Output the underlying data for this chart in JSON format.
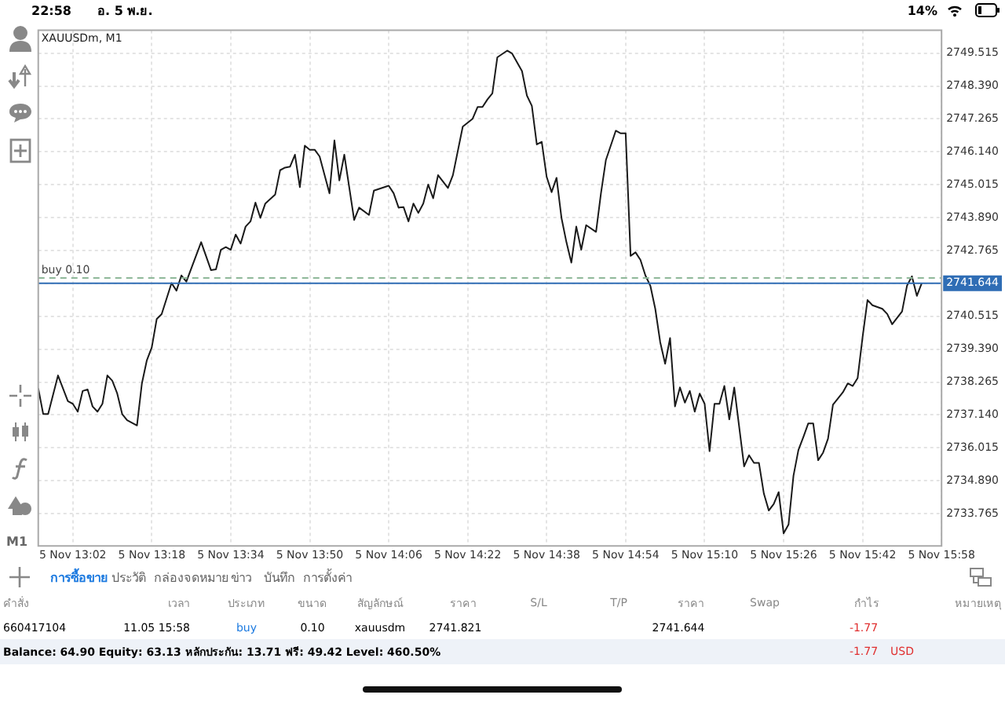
{
  "chart_data": {
    "type": "line",
    "title": "XAUUSDm, M1",
    "x": [
      "--11-05T12:55",
      "--11-05T12:56",
      "--11-05T12:57",
      "--11-05T12:59",
      "--11-05T13:01",
      "--11-05T13:02",
      "--11-05T13:03",
      "--11-05T13:04",
      "--11-05T13:05",
      "--11-05T13:06",
      "--11-05T13:07",
      "--11-05T13:08",
      "--11-05T13:09",
      "--11-05T13:10",
      "--11-05T13:11",
      "--11-05T13:12",
      "--11-05T13:13",
      "--11-05T13:15",
      "--11-05T13:16",
      "--11-05T13:17",
      "--11-05T13:18",
      "--11-05T13:19",
      "--11-05T13:20",
      "--11-05T13:22",
      "--11-05T13:23",
      "--11-05T13:24",
      "--11-05T13:25",
      "--11-05T13:28",
      "--11-05T13:30",
      "--11-05T13:31",
      "--11-05T13:32",
      "--11-05T13:33",
      "--11-05T13:34",
      "--11-05T13:35",
      "--11-05T13:36",
      "--11-05T13:37",
      "--11-05T13:38",
      "--11-05T13:39",
      "--11-05T13:40",
      "--11-05T13:41",
      "--11-05T13:43",
      "--11-05T13:44",
      "--11-05T13:45",
      "--11-05T13:46",
      "--11-05T13:47",
      "--11-05T13:48",
      "--11-05T13:49",
      "--11-05T13:50",
      "--11-05T13:51",
      "--11-05T13:52",
      "--11-05T13:54",
      "--11-05T13:55",
      "--11-05T13:56",
      "--11-05T13:57",
      "--11-05T13:59",
      "--11-05T14:00",
      "--11-05T14:02",
      "--11-05T14:03",
      "--11-05T14:06",
      "--11-05T14:07",
      "--11-05T14:08",
      "--11-05T14:09",
      "--11-05T14:10",
      "--11-05T14:11",
      "--11-05T14:12",
      "--11-05T14:13",
      "--11-05T14:14",
      "--11-05T14:15",
      "--11-05T14:16",
      "--11-05T14:18",
      "--11-05T14:19",
      "--11-05T14:21",
      "--11-05T14:23",
      "--11-05T14:24",
      "--11-05T14:25",
      "--11-05T14:26",
      "--11-05T14:27",
      "--11-05T14:28",
      "--11-05T14:30",
      "--11-05T14:31",
      "--11-05T14:33",
      "--11-05T14:34",
      "--11-05T14:35",
      "--11-05T14:36",
      "--11-05T14:37",
      "--11-05T14:38",
      "--11-05T14:39",
      "--11-05T14:40",
      "--11-05T14:41",
      "--11-05T14:42",
      "--11-05T14:43",
      "--11-05T14:44",
      "--11-05T14:45",
      "--11-05T14:46",
      "--11-05T14:48",
      "--11-05T14:49",
      "--11-05T14:50",
      "--11-05T14:52",
      "--11-05T14:53",
      "--11-05T14:54",
      "--11-05T14:55",
      "--11-05T14:56",
      "--11-05T14:57",
      "--11-05T14:58",
      "--11-05T14:59",
      "--11-05T15:00",
      "--11-05T15:01",
      "--11-05T15:02",
      "--11-05T15:03",
      "--11-05T15:04",
      "--11-05T15:05",
      "--11-05T15:06",
      "--11-05T15:07",
      "--11-05T15:08",
      "--11-05T15:09",
      "--11-05T15:10",
      "--11-05T15:11",
      "--11-05T15:12",
      "--11-05T15:13",
      "--11-05T15:14",
      "--11-05T15:15",
      "--11-05T15:16",
      "--11-05T15:18",
      "--11-05T15:19",
      "--11-05T15:20",
      "--11-05T15:21",
      "--11-05T15:22",
      "--11-05T15:23",
      "--11-05T15:24",
      "--11-05T15:25",
      "--11-05T15:26",
      "--11-05T15:27",
      "--11-05T15:28",
      "--11-05T15:29",
      "--11-05T15:30",
      "--11-05T15:31",
      "--11-05T15:32",
      "--11-05T15:33",
      "--11-05T15:34",
      "--11-05T15:35",
      "--11-05T15:36",
      "--11-05T15:38",
      "--11-05T15:39",
      "--11-05T15:40",
      "--11-05T15:41",
      "--11-05T15:42",
      "--11-05T15:43",
      "--11-05T15:44",
      "--11-05T15:46",
      "--11-05T15:47",
      "--11-05T15:48",
      "--11-05T15:50",
      "--11-05T15:51",
      "--11-05T15:52",
      "--11-05T15:53",
      "--11-05T15:54"
    ],
    "series": [
      {
        "color": "#1a1a1a",
        "values": [
          2738.05,
          2737.17,
          2737.17,
          2738.49,
          2737.61,
          2737.52,
          2737.25,
          2737.96,
          2738.01,
          2737.43,
          2737.25,
          2737.52,
          2738.49,
          2738.31,
          2737.87,
          2737.17,
          2736.96,
          2736.78,
          2738.22,
          2739.01,
          2739.45,
          2740.42,
          2740.59,
          2741.65,
          2741.39,
          2741.91,
          2741.7,
          2743.05,
          2742.09,
          2742.12,
          2742.79,
          2742.88,
          2742.79,
          2743.31,
          2743.0,
          2743.58,
          2743.76,
          2744.4,
          2743.88,
          2744.37,
          2744.68,
          2745.51,
          2745.6,
          2745.63,
          2746.04,
          2744.93,
          2746.35,
          2746.21,
          2746.21,
          2745.98,
          2744.72,
          2746.53,
          2745.16,
          2746.04,
          2743.81,
          2744.23,
          2743.98,
          2744.81,
          2744.98,
          2744.72,
          2744.23,
          2744.25,
          2743.76,
          2744.37,
          2744.05,
          2744.37,
          2745.02,
          2744.55,
          2745.34,
          2744.9,
          2745.34,
          2747.0,
          2747.27,
          2747.67,
          2747.67,
          2747.93,
          2748.14,
          2749.37,
          2749.6,
          2749.5,
          2748.9,
          2748.06,
          2747.71,
          2746.39,
          2746.48,
          2745.28,
          2744.76,
          2745.25,
          2743.88,
          2743.05,
          2742.35,
          2743.58,
          2742.79,
          2743.63,
          2743.4,
          2744.72,
          2745.86,
          2746.86,
          2746.77,
          2746.77,
          2742.58,
          2742.7,
          2742.44,
          2741.91,
          2741.56,
          2740.77,
          2739.63,
          2738.89,
          2739.77,
          2737.43,
          2738.08,
          2737.56,
          2737.96,
          2737.25,
          2737.87,
          2737.52,
          2735.9,
          2737.52,
          2737.52,
          2738.13,
          2736.99,
          2738.08,
          2735.38,
          2735.76,
          2735.5,
          2735.5,
          2734.45,
          2733.87,
          2734.09,
          2734.5,
          2733.09,
          2733.39,
          2735.06,
          2735.94,
          2736.38,
          2736.85,
          2736.85,
          2735.59,
          2735.85,
          2736.33,
          2737.49,
          2737.91,
          2738.22,
          2738.13,
          2738.4,
          2739.8,
          2741.07,
          2740.89,
          2740.77,
          2740.59,
          2740.24,
          2740.68,
          2741.56,
          2741.88,
          2741.21,
          2741.65
        ]
      }
    ],
    "xlim": [
      "--11-05T12:55",
      "--11-05T15:58"
    ],
    "xticks": [
      {
        "value": "--11-05T13:02",
        "label": "5 Nov 13:02"
      },
      {
        "value": "--11-05T13:18",
        "label": "5 Nov 13:18"
      },
      {
        "value": "--11-05T13:34",
        "label": "5 Nov 13:34"
      },
      {
        "value": "--11-05T13:50",
        "label": "5 Nov 13:50"
      },
      {
        "value": "--11-05T14:06",
        "label": "5 Nov 14:06"
      },
      {
        "value": "--11-05T14:22",
        "label": "5 Nov 14:22"
      },
      {
        "value": "--11-05T14:38",
        "label": "5 Nov 14:38"
      },
      {
        "value": "--11-05T14:54",
        "label": "5 Nov 14:54"
      },
      {
        "value": "--11-05T15:10",
        "label": "5 Nov 15:10"
      },
      {
        "value": "--11-05T15:26",
        "label": "5 Nov 15:26"
      },
      {
        "value": "--11-05T15:42",
        "label": "5 Nov 15:42"
      },
      {
        "value": "--11-05T15:58",
        "label": "5 Nov 15:58"
      }
    ],
    "ylim": [
      2732.66,
      2750.3
    ],
    "yticks": [
      {
        "value": 2733.765,
        "label": "2733.765"
      },
      {
        "value": 2734.89,
        "label": "2734.890"
      },
      {
        "value": 2736.015,
        "label": "2736.015"
      },
      {
        "value": 2737.14,
        "label": "2737.140"
      },
      {
        "value": 2738.265,
        "label": "2738.265"
      },
      {
        "value": 2739.39,
        "label": "2739.390"
      },
      {
        "value": 2740.515,
        "label": "2740.515"
      },
      {
        "value": 2741.64,
        "label": null
      },
      {
        "value": 2742.765,
        "label": "2742.765"
      },
      {
        "value": 2743.89,
        "label": "2743.890"
      },
      {
        "value": 2745.015,
        "label": "2745.015"
      },
      {
        "value": 2746.14,
        "label": "2746.140"
      },
      {
        "value": 2747.265,
        "label": "2747.265"
      },
      {
        "value": 2748.39,
        "label": "2748.390"
      },
      {
        "value": 2749.515,
        "label": "2749.515"
      }
    ],
    "grid": true,
    "ref_lines": [
      {
        "axis": "y",
        "value": 2741.821,
        "label": "buy 0.10",
        "color": "#8fb89a",
        "line_style": "dashed"
      },
      {
        "axis": "y",
        "value": 2741.644,
        "label": "2741.644",
        "color": "#2f6db5",
        "line_style": "solid"
      }
    ],
    "annotations": [
      "22:58",
      "อ. 5 พ.ย.",
      "14%",
      "M1",
      "การซื้อขาย",
      "ประวัติ",
      "กล่องจดหมาย",
      "ข่าว",
      "บันทึก",
      "การตั้งค่า",
      "คำสั่ง",
      "เวลา",
      "ประเภท",
      "ขนาด",
      "สัญลักษณ์",
      "ราคา",
      "S/L",
      "T/P",
      "ราคา",
      "Swap",
      "กำไร",
      "หมายเหตุ",
      "660417104",
      "11.05 15:58",
      "buy",
      "0.10",
      "xauusdm",
      "2741.821",
      "2741.644",
      "-1.77",
      "Balance: 64.90 Equity: 63.13 หลักประกัน: 13.71 ฟรี: 49.42 Level: 460.50%",
      "-1.77",
      "USD"
    ]
  }
}
